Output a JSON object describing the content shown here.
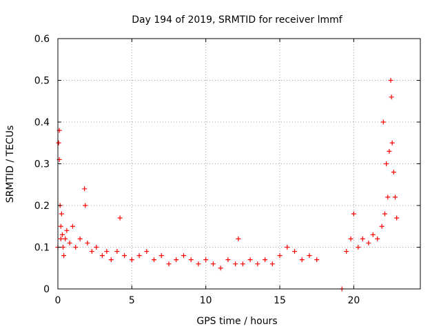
{
  "chart_data": {
    "type": "scatter",
    "title": "Day 194 of 2019, SRMTID for receiver lmmf",
    "xlabel": "GPS time / hours",
    "ylabel": "SRMTID / TECUs",
    "xlim": [
      0,
      24.5
    ],
    "ylim": [
      0,
      0.6
    ],
    "x_ticks": [
      0,
      5,
      10,
      15,
      20
    ],
    "y_ticks": [
      0,
      0.1,
      0.2,
      0.3,
      0.4,
      0.5,
      0.6
    ],
    "x_tick_labels": [
      "0",
      "5",
      "10",
      "15",
      "20"
    ],
    "y_tick_labels": [
      "0",
      "0.1",
      "0.2",
      "0.3",
      "0.4",
      "0.5",
      "0.6"
    ],
    "grid": true,
    "marker": "+",
    "color": "#ff0000",
    "series": [
      {
        "name": "SRMTID",
        "x": [
          0.0,
          0.05,
          0.1,
          0.1,
          0.15,
          0.2,
          0.2,
          0.25,
          0.3,
          0.35,
          0.4,
          0.5,
          0.6,
          0.8,
          1.0,
          1.2,
          1.5,
          1.8,
          1.85,
          2.0,
          2.3,
          2.6,
          3.0,
          3.3,
          3.6,
          4.0,
          4.2,
          4.5,
          5.0,
          5.5,
          6.0,
          6.5,
          7.0,
          7.5,
          8.0,
          8.5,
          9.0,
          9.5,
          10.0,
          10.5,
          11.0,
          11.5,
          12.0,
          12.2,
          12.5,
          13.0,
          13.5,
          14.0,
          14.5,
          15.0,
          15.5,
          16.0,
          16.5,
          17.0,
          17.5,
          19.2,
          19.5,
          19.8,
          20.0,
          20.3,
          20.6,
          21.0,
          21.3,
          21.6,
          21.9,
          22.0,
          22.1,
          22.2,
          22.3,
          22.4,
          22.5,
          22.55,
          22.6,
          22.7,
          22.8,
          22.9
        ],
        "y": [
          0.1,
          0.35,
          0.38,
          0.31,
          0.2,
          0.15,
          0.12,
          0.18,
          0.13,
          0.1,
          0.08,
          0.12,
          0.14,
          0.11,
          0.15,
          0.1,
          0.12,
          0.24,
          0.2,
          0.11,
          0.09,
          0.1,
          0.08,
          0.09,
          0.07,
          0.09,
          0.17,
          0.08,
          0.07,
          0.08,
          0.09,
          0.07,
          0.08,
          0.06,
          0.07,
          0.08,
          0.07,
          0.06,
          0.07,
          0.06,
          0.05,
          0.07,
          0.06,
          0.12,
          0.06,
          0.07,
          0.06,
          0.07,
          0.06,
          0.08,
          0.1,
          0.09,
          0.07,
          0.08,
          0.07,
          0.0,
          0.09,
          0.12,
          0.18,
          0.1,
          0.12,
          0.11,
          0.13,
          0.12,
          0.15,
          0.4,
          0.18,
          0.3,
          0.22,
          0.33,
          0.5,
          0.46,
          0.35,
          0.28,
          0.22,
          0.17
        ]
      }
    ]
  }
}
